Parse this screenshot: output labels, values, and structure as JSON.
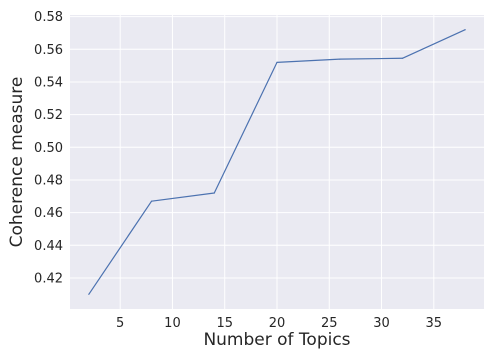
{
  "chart_data": {
    "type": "line",
    "title": "",
    "xlabel": "Number of Topics",
    "ylabel": "Coherence measure",
    "xlim": [
      0.2,
      39.8
    ],
    "ylim": [
      0.401,
      0.581
    ],
    "xticks": [
      5,
      10,
      15,
      20,
      25,
      30,
      35
    ],
    "xtick_labels": [
      "5",
      "10",
      "15",
      "20",
      "25",
      "30",
      "35"
    ],
    "yticks": [
      0.42,
      0.44,
      0.46,
      0.48,
      0.5,
      0.52,
      0.54,
      0.56,
      0.58
    ],
    "ytick_labels": [
      "0.42",
      "0.44",
      "0.46",
      "0.48",
      "0.50",
      "0.52",
      "0.54",
      "0.56",
      "0.58"
    ],
    "grid": true,
    "series": [
      {
        "x": [
          2,
          8,
          14,
          20,
          26,
          32,
          38
        ],
        "y": [
          0.41,
          0.467,
          0.472,
          0.552,
          0.554,
          0.5545,
          0.572
        ]
      }
    ],
    "colors": {
      "background": "#eaeaf2",
      "grid": "#ffffff",
      "line": "#4c72b0"
    }
  }
}
